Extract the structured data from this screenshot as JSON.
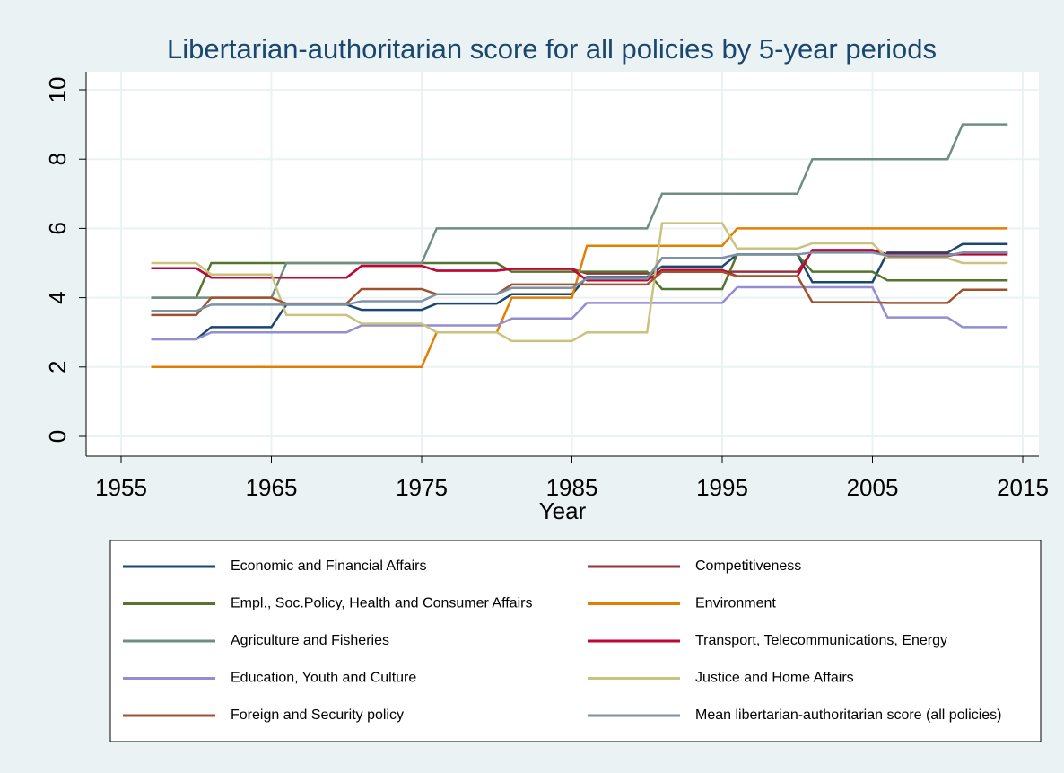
{
  "chart_data": {
    "type": "line",
    "title": "Libertarian-authoritarian score for all policies by 5-year periods",
    "x_label": "Year",
    "x": [
      1957,
      1960,
      1961,
      1965,
      1966,
      1970,
      1971,
      1975,
      1976,
      1980,
      1981,
      1985,
      1986,
      1990,
      1991,
      1995,
      1996,
      2000,
      2001,
      2005,
      2006,
      2010,
      2011,
      2014
    ],
    "xlim": [
      1955,
      2015
    ],
    "xticks": [
      1955,
      1965,
      1975,
      1985,
      1995,
      2005,
      2015
    ],
    "ylim": [
      0,
      10
    ],
    "yticks": [
      0,
      2,
      4,
      6,
      8,
      10
    ],
    "grid": true,
    "legend": "bottom",
    "series": [
      {
        "name": "Economic and Financial Affairs",
        "color": "#1a476f",
        "values": [
          2.8,
          2.8,
          3.15,
          3.15,
          3.8,
          3.8,
          3.65,
          3.65,
          3.83,
          3.83,
          4.1,
          4.1,
          4.6,
          4.6,
          4.9,
          4.9,
          5.25,
          5.25,
          4.45,
          4.45,
          5.3,
          5.3,
          5.55,
          5.55
        ]
      },
      {
        "name": "Competitiveness",
        "color": "#90353b",
        "values": [
          4.85,
          4.85,
          4.58,
          4.58,
          4.58,
          4.58,
          4.92,
          4.92,
          4.78,
          4.78,
          4.83,
          4.83,
          4.7,
          4.7,
          4.75,
          4.75,
          4.75,
          4.75,
          5.35,
          5.35,
          5.2,
          5.2,
          5.3,
          5.3
        ]
      },
      {
        "name": "Empl., Soc.Policy, Health and Consumer Affairs",
        "color": "#55752f",
        "values": [
          4,
          4,
          5,
          5,
          5,
          5,
          5,
          5,
          5,
          5,
          4.75,
          4.75,
          4.75,
          4.75,
          4.25,
          4.25,
          5.25,
          5.25,
          4.75,
          4.75,
          4.5,
          4.5,
          4.5,
          4.5
        ]
      },
      {
        "name": "Environment",
        "color": "#e37e00",
        "values": [
          2,
          2,
          2,
          2,
          2,
          2,
          2,
          2,
          3,
          3,
          4,
          4,
          5.5,
          5.5,
          5.5,
          5.5,
          6,
          6,
          6,
          6,
          6,
          6,
          6,
          6
        ]
      },
      {
        "name": "Agriculture and Fisheries",
        "color": "#6e8e84",
        "values": [
          4,
          4,
          4,
          4,
          5,
          5,
          5,
          5,
          6,
          6,
          6,
          6,
          6,
          6,
          7,
          7,
          7,
          7,
          8,
          8,
          8,
          8,
          9,
          9
        ]
      },
      {
        "name": "Transport, Telecommunications, Energy",
        "color": "#c10534",
        "values": [
          4.85,
          4.85,
          4.58,
          4.58,
          4.58,
          4.58,
          4.92,
          4.92,
          4.78,
          4.78,
          4.83,
          4.83,
          4.5,
          4.5,
          4.8,
          4.8,
          4.62,
          4.62,
          5.38,
          5.38,
          5.25,
          5.25,
          5.25,
          5.25
        ]
      },
      {
        "name": "Education, Youth and Culture",
        "color": "#938dd2",
        "values": [
          2.8,
          2.8,
          3,
          3,
          3,
          3,
          3.2,
          3.2,
          3.2,
          3.2,
          3.4,
          3.4,
          3.85,
          3.85,
          3.85,
          3.85,
          4.3,
          4.3,
          4.3,
          4.3,
          3.43,
          3.43,
          3.15,
          3.15
        ]
      },
      {
        "name": "Justice and Home Affairs",
        "color": "#cac27e",
        "values": [
          5,
          5,
          4.67,
          4.67,
          3.5,
          3.5,
          3.25,
          3.25,
          3,
          3,
          2.75,
          2.75,
          3,
          3,
          6.15,
          6.15,
          5.42,
          5.42,
          5.57,
          5.57,
          5.14,
          5.14,
          5,
          5
        ]
      },
      {
        "name": "Foreign and Security policy",
        "color": "#a0522d",
        "values": [
          3.5,
          3.5,
          4,
          4,
          3.83,
          3.83,
          4.25,
          4.25,
          4.1,
          4.1,
          4.38,
          4.38,
          4.38,
          4.38,
          4.75,
          4.75,
          4.62,
          4.62,
          3.87,
          3.87,
          3.85,
          3.85,
          4.23,
          4.23
        ]
      },
      {
        "name": "Mean libertarian-authoritarian score (all policies)",
        "color": "#7b92a8",
        "values": [
          3.62,
          3.62,
          3.8,
          3.8,
          3.8,
          3.8,
          3.9,
          3.9,
          4.1,
          4.1,
          4.28,
          4.28,
          4.55,
          4.55,
          5.15,
          5.15,
          5.25,
          5.25,
          5.3,
          5.3,
          5.22,
          5.22,
          5.3,
          5.3
        ]
      }
    ]
  }
}
